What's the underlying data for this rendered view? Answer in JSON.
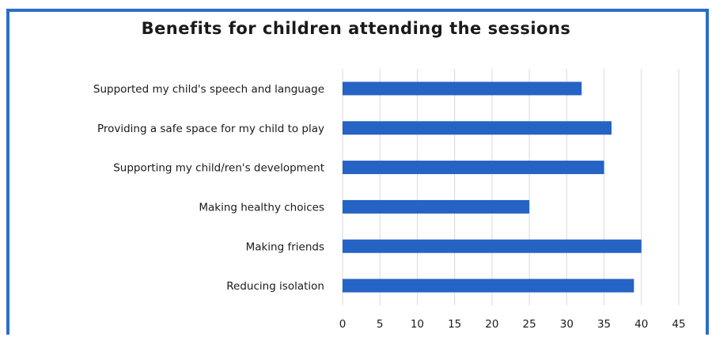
{
  "chart_data": {
    "type": "bar",
    "orientation": "horizontal",
    "title": "Benefits for children attending the sessions",
    "xlabel": "",
    "ylabel": "",
    "categories": [
      "Supported my child's speech and language",
      "Providing a safe space for my child to play",
      "Supporting my child/ren's development",
      "Making healthy choices",
      "Making friends",
      "Reducing isolation"
    ],
    "values": [
      32,
      36,
      35,
      25,
      40,
      39
    ],
    "xlim": [
      0,
      45
    ],
    "xticks": [
      0,
      5,
      10,
      15,
      20,
      25,
      30,
      35,
      40,
      45
    ],
    "grid": "vertical",
    "legend": "none",
    "colors": {
      "bar": "#2563c4",
      "frame": "#2a6fc4",
      "grid": "#d9d9d9"
    }
  }
}
